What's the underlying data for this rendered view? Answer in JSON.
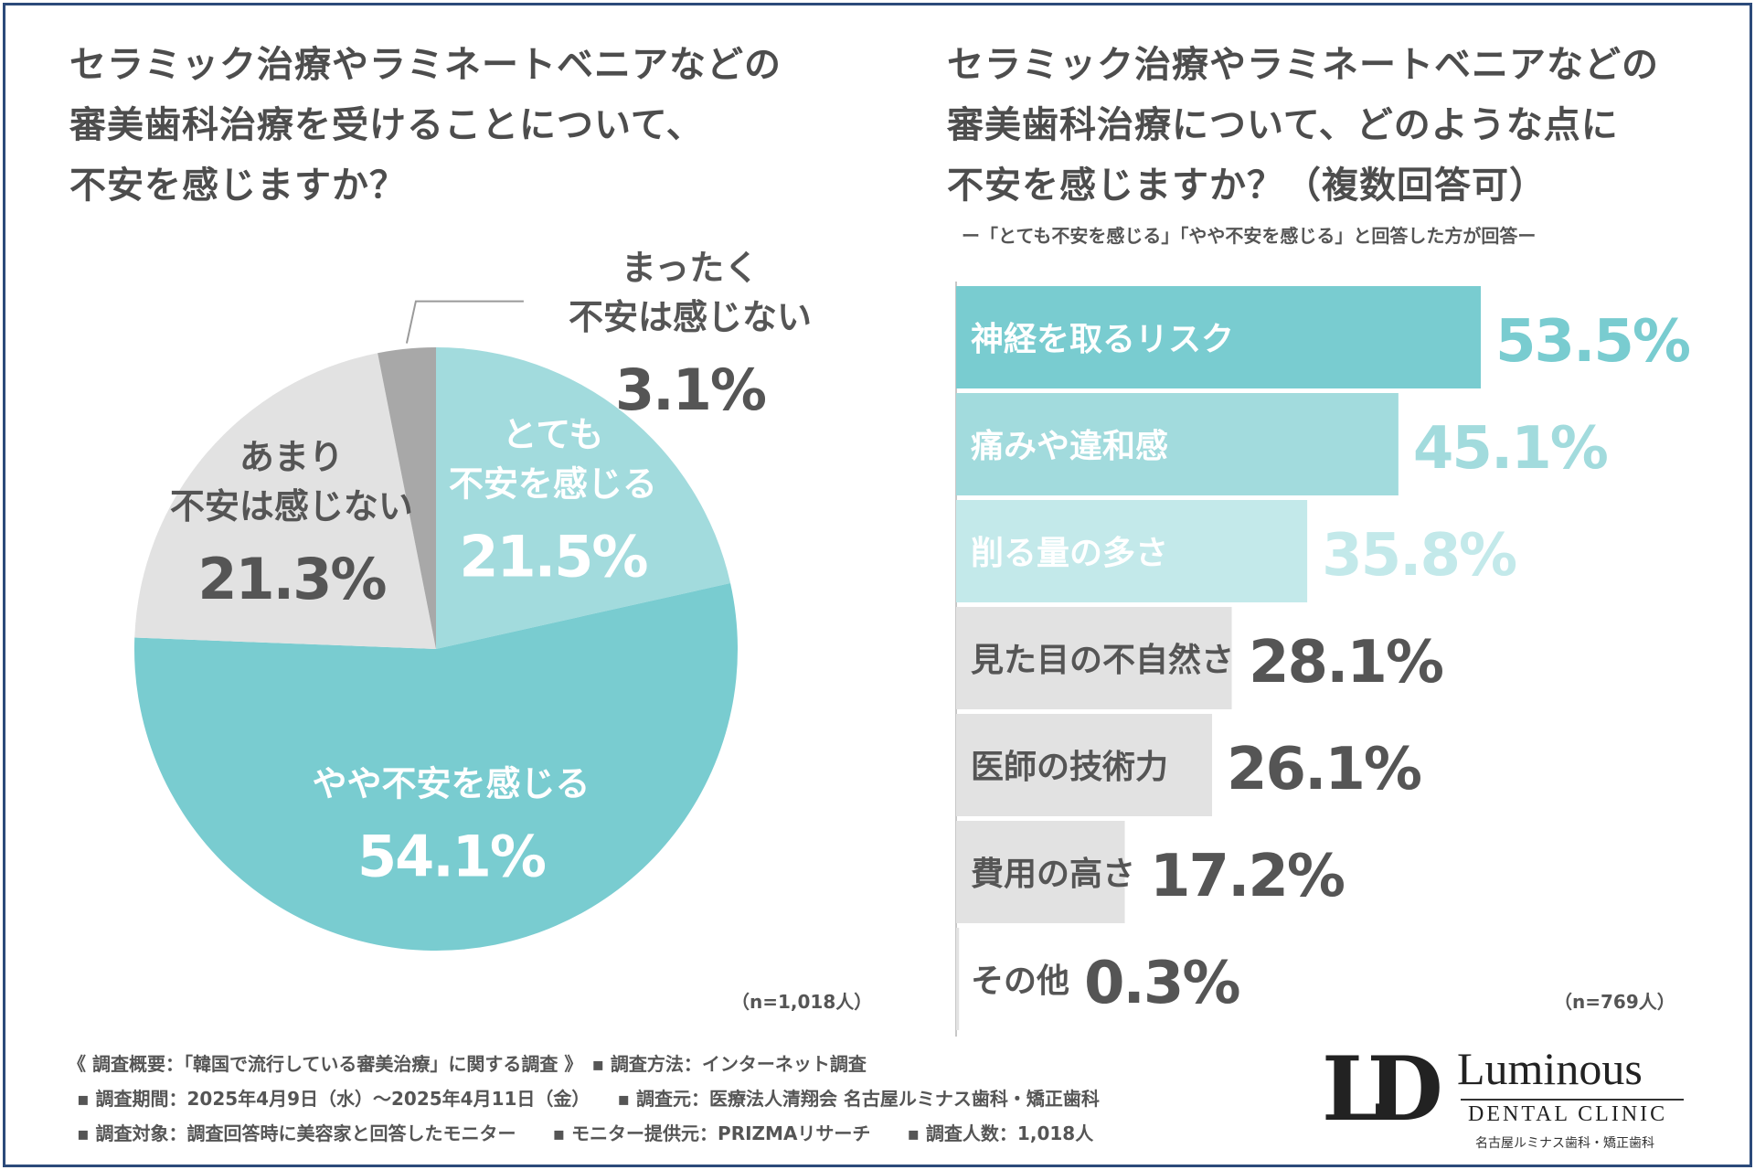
{
  "colors": {
    "teal_dark": "#79ccd0",
    "teal_mid": "#a2dbdd",
    "teal_light": "#c3e9ea",
    "gray_light": "#e2e2e2",
    "gray_mid": "#a8a8a8",
    "white_text": "#ffffff",
    "dark_text": "#555555"
  },
  "left": {
    "title_lines": [
      "セラミック治療やラミネートベニアなどの",
      "審美歯科治療を受けることについて、",
      "不安を感じますか？"
    ],
    "n": "（n=1,018人）"
  },
  "right": {
    "title_lines": [
      "セラミック治療やラミネートベニアなどの",
      "審美歯科治療について、どのような点に",
      "不安を感じますか？（複数回答可）"
    ],
    "subnote": "ー「とても不安を感じる」「やや不安を感じる」と回答した方が回答ー",
    "n": "（n=769人）"
  },
  "chart_data": [
    {
      "type": "pie",
      "title": "セラミック治療やラミネートベニアなどの審美歯科治療を受けることについて、不安を感じますか？",
      "slices": [
        {
          "label_lines": [
            "とても",
            "不安を感じる"
          ],
          "value": 21.5,
          "value_label": "21.5%",
          "color": "#a2dbdd",
          "text_color": "#ffffff"
        },
        {
          "label_lines": [
            "やや不安を感じる"
          ],
          "value": 54.1,
          "value_label": "54.1%",
          "color": "#79ccd0",
          "text_color": "#ffffff"
        },
        {
          "label_lines": [
            "あまり",
            "不安は感じない"
          ],
          "value": 21.3,
          "value_label": "21.3%",
          "color": "#e2e2e2",
          "text_color": "#555555"
        },
        {
          "label_lines": [
            "まったく",
            "不安は感じない"
          ],
          "value": 3.1,
          "value_label": "3.1%",
          "color": "#a8a8a8",
          "text_color": "#555555"
        }
      ]
    },
    {
      "type": "bar",
      "orientation": "horizontal",
      "title": "セラミック治療やラミネートベニアなどの審美歯科治療について、どのような点に不安を感じますか？（複数回答可）",
      "categories": [
        "神経を取るリスク",
        "痛みや違和感",
        "削る量の多さ",
        "見た目の不自然さ",
        "医師の技術力",
        "費用の高さ",
        "その他"
      ],
      "values": [
        53.5,
        45.1,
        35.8,
        28.1,
        26.1,
        17.2,
        0.3
      ],
      "value_labels": [
        "53.5%",
        "45.1%",
        "35.8%",
        "28.1%",
        "26.1%",
        "17.2%",
        "0.3%"
      ],
      "bar_colors": [
        "#79ccd0",
        "#a2dbdd",
        "#c3e9ea",
        "#e2e2e2",
        "#e2e2e2",
        "#e2e2e2",
        "#e2e2e2"
      ],
      "label_colors": [
        "#ffffff",
        "#ffffff",
        "#ffffff",
        "#555555",
        "#555555",
        "#555555",
        "#555555"
      ],
      "value_colors": [
        "#79ccd0",
        "#a2dbdd",
        "#c3e9ea",
        "#555555",
        "#555555",
        "#555555",
        "#555555"
      ],
      "xlim": [
        0,
        53.5
      ]
    }
  ],
  "footer": {
    "line1": "《 調査概要：「韓国で流行している審美治療」に関する調査 》　▪ 調査方法：インターネット調査",
    "line2": "▪ 調査期間：2025年4月9日（水）～2025年4月11日（金）　　▪ 調査元：医療法人清翔会 名古屋ルミナス歯科・矯正歯科",
    "line3": "▪ 調査対象：調査回答時に美容家と回答したモニター　　▪ モニター提供元：PRIZMAリサーチ　　▪ 調査人数：1,018人"
  },
  "logo": {
    "mark": "LD",
    "name": "Luminous",
    "sub": "DENTAL CLINIC",
    "jp": "名古屋ルミナス歯科・矯正歯科"
  }
}
